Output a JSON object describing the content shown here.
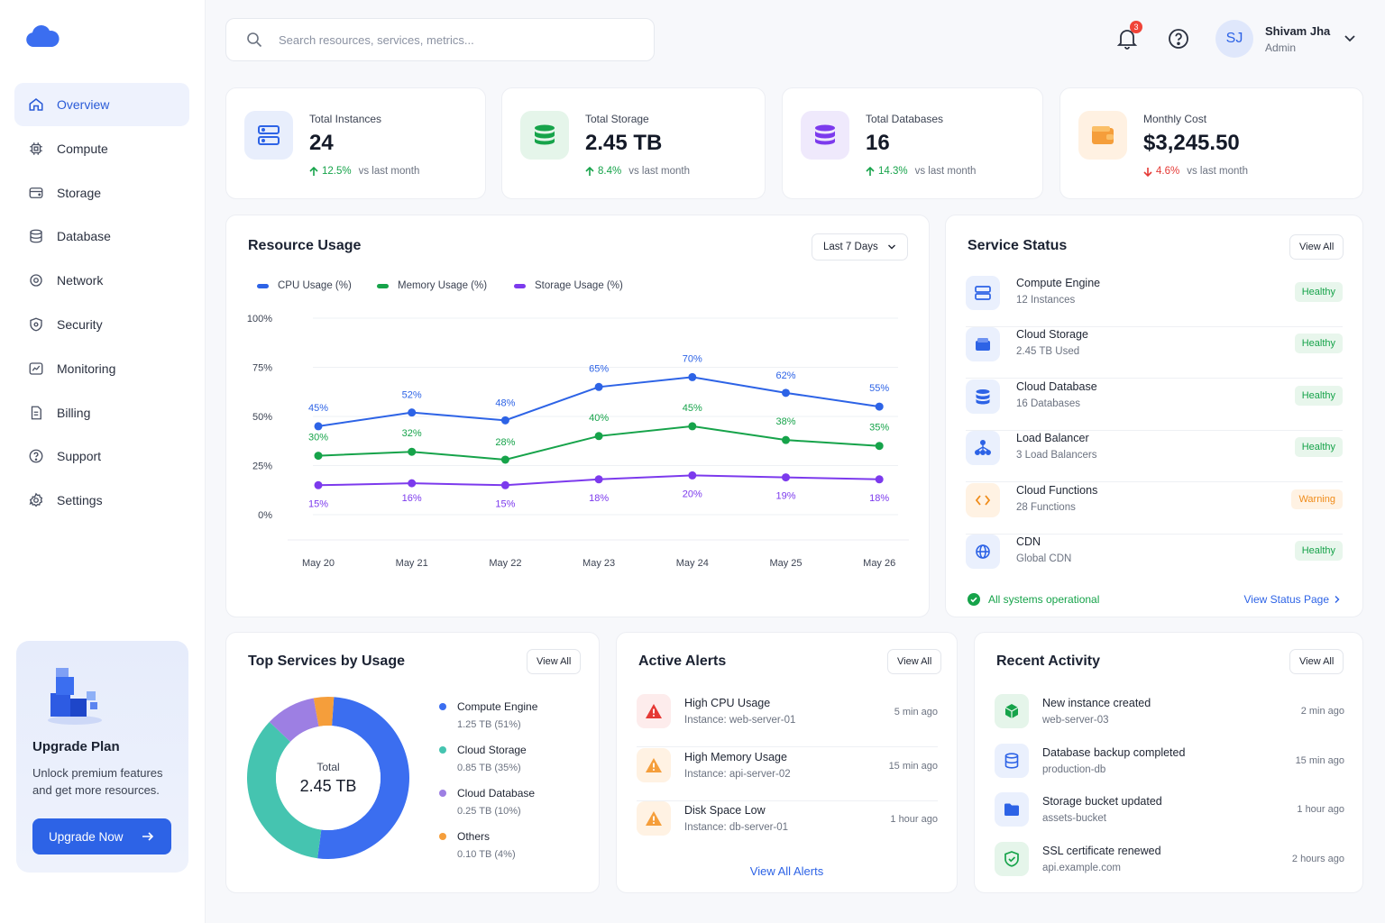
{
  "colors": {
    "accent": "#2d63e6",
    "success": "#16a34a",
    "danger": "#e53935",
    "warning": "#f08c1a",
    "cpu": "#2d63e6",
    "memory": "#16a34a",
    "storage": "#7c3aed"
  },
  "sidebar": {
    "items": [
      {
        "label": "Overview",
        "icon": "home-icon",
        "active": true
      },
      {
        "label": "Compute",
        "icon": "cpu-icon"
      },
      {
        "label": "Storage",
        "icon": "storage-icon"
      },
      {
        "label": "Database",
        "icon": "database-icon"
      },
      {
        "label": "Network",
        "icon": "network-icon"
      },
      {
        "label": "Security",
        "icon": "shield-icon"
      },
      {
        "label": "Monitoring",
        "icon": "monitoring-icon"
      },
      {
        "label": "Billing",
        "icon": "billing-icon"
      },
      {
        "label": "Support",
        "icon": "support-icon"
      },
      {
        "label": "Settings",
        "icon": "gear-icon"
      }
    ],
    "upgrade": {
      "title": "Upgrade Plan",
      "text": "Unlock premium features and get more resources.",
      "button": "Upgrade Now"
    }
  },
  "header": {
    "search_placeholder": "Search resources, services, metrics...",
    "notification_count": "3",
    "user": {
      "initials": "SJ",
      "name": "Shivam Jha",
      "role": "Admin"
    }
  },
  "stats": [
    {
      "label": "Total Instances",
      "value": "24",
      "delta": "12.5%",
      "trend": "up",
      "note": "vs last month"
    },
    {
      "label": "Total Storage",
      "value": "2.45 TB",
      "delta": "8.4%",
      "trend": "up",
      "note": "vs last month"
    },
    {
      "label": "Total Databases",
      "value": "16",
      "delta": "14.3%",
      "trend": "up",
      "note": "vs last month"
    },
    {
      "label": "Monthly Cost",
      "value": "$3,245.50",
      "delta": "4.6%",
      "trend": "down",
      "note": "vs last month"
    }
  ],
  "resource_usage": {
    "title": "Resource Usage",
    "range_label": "Last 7 Days"
  },
  "chart_data": {
    "type": "line",
    "categories": [
      "May 20",
      "May 21",
      "May 22",
      "May 23",
      "May 24",
      "May 25",
      "May 26"
    ],
    "series": [
      {
        "name": "CPU Usage (%)",
        "values": [
          45,
          52,
          48,
          65,
          70,
          62,
          55
        ],
        "labels": [
          "45%",
          "52%",
          "48%",
          "65%",
          "70%",
          "62%",
          "55%"
        ]
      },
      {
        "name": "Memory Usage (%)",
        "values": [
          30,
          32,
          28,
          40,
          45,
          38,
          35
        ],
        "labels": [
          "30%",
          "32%",
          "28%",
          "40%",
          "45%",
          "38%",
          "35%"
        ]
      },
      {
        "name": "Storage Usage (%)",
        "values": [
          15,
          16,
          15,
          18,
          20,
          19,
          18
        ],
        "labels": [
          "15%",
          "16%",
          "15%",
          "18%",
          "20%",
          "19%",
          "18%"
        ]
      }
    ],
    "yticks": [
      "100%",
      "75%",
      "50%",
      "25%",
      "0%"
    ],
    "ylim": [
      0,
      100
    ],
    "grid": true,
    "legend": "top-left"
  },
  "service_status": {
    "title": "Service Status",
    "view_all": "View All",
    "items": [
      {
        "name": "Compute Engine",
        "sub": "12 Instances",
        "status": "Healthy",
        "icon": "server-icon"
      },
      {
        "name": "Cloud Storage",
        "sub": "2.45 TB Used",
        "status": "Healthy",
        "icon": "storage-box-icon"
      },
      {
        "name": "Cloud Database",
        "sub": "16 Databases",
        "status": "Healthy",
        "icon": "database-icon"
      },
      {
        "name": "Load Balancer",
        "sub": "3 Load Balancers",
        "status": "Healthy",
        "icon": "load-balancer-icon"
      },
      {
        "name": "Cloud Functions",
        "sub": "28 Functions",
        "status": "Warning",
        "icon": "code-icon"
      },
      {
        "name": "CDN",
        "sub": "Global CDN",
        "status": "Healthy",
        "icon": "globe-icon"
      }
    ],
    "footer": "All systems operational",
    "footer_link": "View Status Page"
  },
  "top_services": {
    "title": "Top Services by Usage",
    "view_all": "View All",
    "total_label": "Total",
    "total_value": "2.45 TB",
    "items": [
      {
        "name": "Compute Engine",
        "detail": "1.25 TB (51%)",
        "share": 51,
        "color": "#3b6ef0"
      },
      {
        "name": "Cloud Storage",
        "detail": "0.85 TB (35%)",
        "share": 35,
        "color": "#45c4b0"
      },
      {
        "name": "Cloud Database",
        "detail": "0.25 TB (10%)",
        "share": 10,
        "color": "#9d7fe3"
      },
      {
        "name": "Others",
        "detail": "0.10 TB (4%)",
        "share": 4,
        "color": "#f59e3b"
      }
    ]
  },
  "alerts": {
    "title": "Active Alerts",
    "view_all": "View All",
    "items": [
      {
        "title": "High CPU Usage",
        "sub": "Instance: web-server-01",
        "time": "5 min ago",
        "level": "critical"
      },
      {
        "title": "High Memory Usage",
        "sub": "Instance: api-server-02",
        "time": "15 min ago",
        "level": "warning"
      },
      {
        "title": "Disk Space Low",
        "sub": "Instance: db-server-01",
        "time": "1 hour ago",
        "level": "warning"
      }
    ],
    "footer_link": "View All Alerts"
  },
  "activity": {
    "title": "Recent Activity",
    "view_all": "View All",
    "items": [
      {
        "title": "New instance created",
        "sub": "web-server-03",
        "time": "2 min ago",
        "icon": "cube-icon"
      },
      {
        "title": "Database backup completed",
        "sub": "production-db",
        "time": "15 min ago",
        "icon": "database-icon"
      },
      {
        "title": "Storage bucket updated",
        "sub": "assets-bucket",
        "time": "1 hour ago",
        "icon": "folder-icon"
      },
      {
        "title": "SSL certificate renewed",
        "sub": "api.example.com",
        "time": "2 hours ago",
        "icon": "shield-check-icon"
      }
    ]
  }
}
